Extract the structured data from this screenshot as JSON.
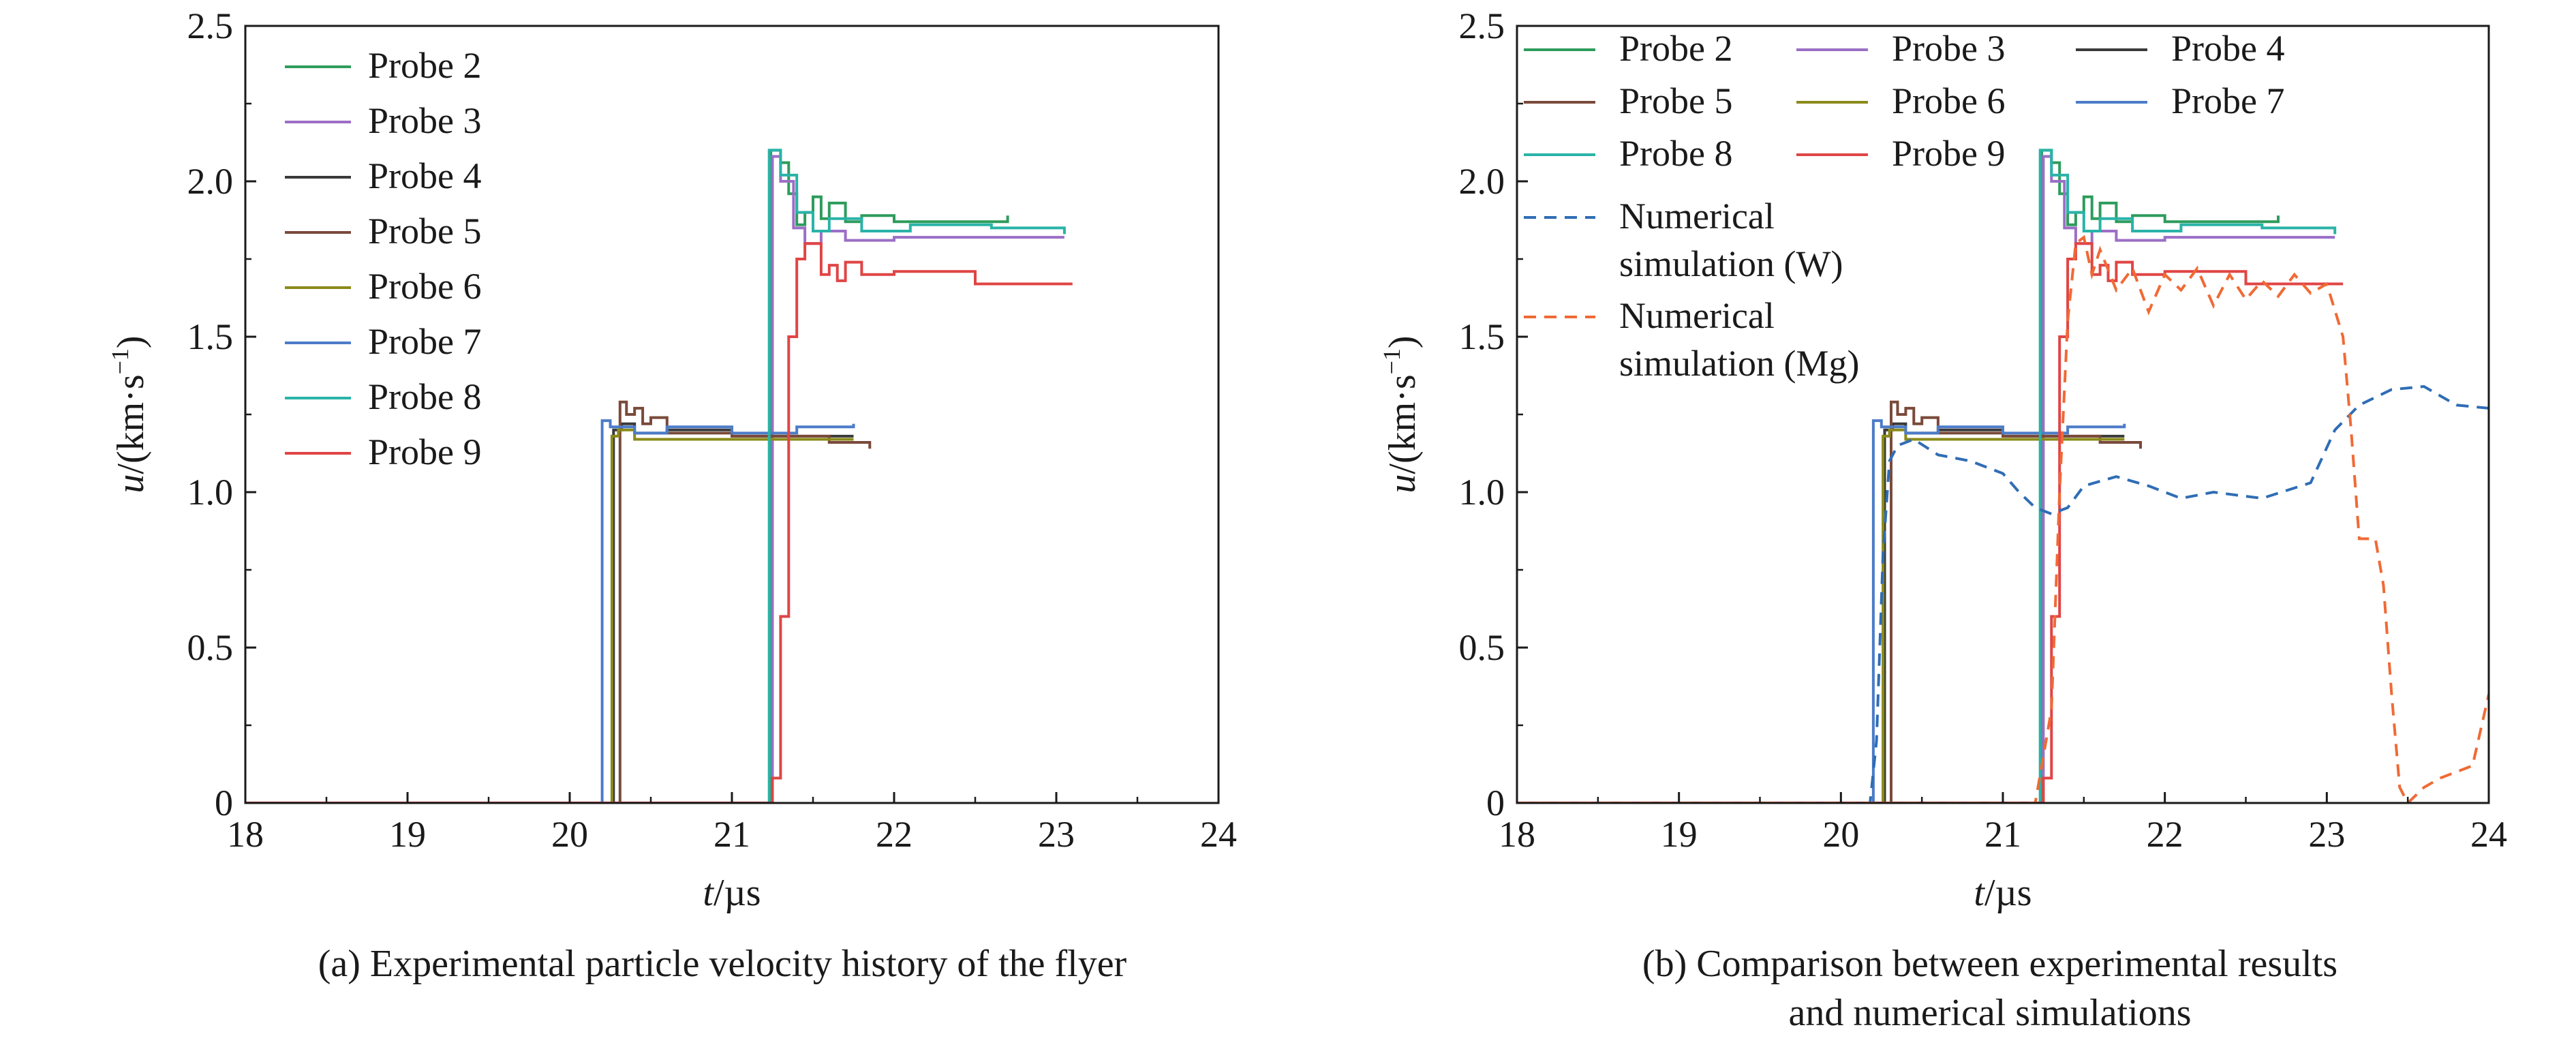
{
  "chart_data": [
    {
      "type": "line",
      "panel": "a",
      "caption": "(a) Experimental particle velocity history of the flyer",
      "xlabel_italic": "t",
      "xlabel_unit": "/µs",
      "ylabel_italic": "u",
      "ylabel_unit": "/(km·s",
      "ylabel_sup": "−1",
      "ylabel_close": ")",
      "xlim": [
        18,
        24
      ],
      "ylim": [
        0,
        2.5
      ],
      "xticks": [
        18,
        19,
        20,
        21,
        22,
        23,
        24
      ],
      "xtick_labels": [
        "18",
        "19",
        "20",
        "21",
        "22",
        "23",
        "24"
      ],
      "yticks": [
        0,
        0.5,
        1.0,
        1.5,
        2.0,
        2.5
      ],
      "ytick_labels": [
        "0",
        "0.5",
        "1.0",
        "1.5",
        "2.0",
        "2.5"
      ],
      "legend": {
        "position": "top-left",
        "columns": 1
      },
      "series": [
        {
          "name": "Probe 2",
          "color": "#2e9c5c",
          "style": "solid",
          "x": [
            18.0,
            21.22,
            21.24,
            21.3,
            21.35,
            21.4,
            21.45,
            21.5,
            21.55,
            21.6,
            21.7,
            21.8,
            22.0,
            22.7
          ],
          "y": [
            0.0,
            0.0,
            2.1,
            2.06,
            1.96,
            1.86,
            1.9,
            1.95,
            1.88,
            1.93,
            1.87,
            1.89,
            1.87,
            1.89
          ]
        },
        {
          "name": "Probe 3",
          "color": "#9b6fc6",
          "style": "solid",
          "x": [
            18.0,
            21.22,
            21.25,
            21.3,
            21.38,
            21.45,
            21.55,
            21.7,
            22.0,
            22.6,
            23.05
          ],
          "y": [
            0.0,
            0.0,
            2.08,
            2.0,
            1.85,
            1.8,
            1.84,
            1.81,
            1.82,
            1.82,
            1.82
          ]
        },
        {
          "name": "Probe 4",
          "color": "#3a3a3a",
          "style": "solid",
          "x": [
            18.0,
            20.24,
            20.27,
            20.32,
            20.4,
            20.6,
            21.0,
            21.75
          ],
          "y": [
            0.0,
            0.0,
            1.2,
            1.22,
            1.19,
            1.2,
            1.18,
            1.18
          ]
        },
        {
          "name": "Probe 5",
          "color": "#7a4a3a",
          "style": "solid",
          "x": [
            18.0,
            20.27,
            20.31,
            20.35,
            20.4,
            20.45,
            20.5,
            20.6,
            21.0,
            21.6,
            21.85
          ],
          "y": [
            0.0,
            0.0,
            1.29,
            1.25,
            1.27,
            1.22,
            1.24,
            1.19,
            1.18,
            1.16,
            1.14
          ]
        },
        {
          "name": "Probe 6",
          "color": "#8a8a1a",
          "style": "solid",
          "x": [
            18.0,
            20.23,
            20.26,
            20.3,
            20.4,
            21.0,
            21.75
          ],
          "y": [
            0.0,
            0.0,
            1.18,
            1.2,
            1.17,
            1.17,
            1.17
          ]
        },
        {
          "name": "Probe 7",
          "color": "#4c7cc8",
          "style": "solid",
          "x": [
            18.0,
            20.18,
            20.2,
            20.25,
            20.4,
            20.6,
            21.0,
            21.4,
            21.75
          ],
          "y": [
            0.0,
            0.0,
            1.23,
            1.21,
            1.19,
            1.21,
            1.19,
            1.21,
            1.22
          ]
        },
        {
          "name": "Probe 8",
          "color": "#2ab3a8",
          "style": "solid",
          "x": [
            18.0,
            21.21,
            21.23,
            21.3,
            21.4,
            21.5,
            21.6,
            21.8,
            22.1,
            22.6,
            23.05
          ],
          "y": [
            0.0,
            0.0,
            2.1,
            2.02,
            1.9,
            1.84,
            1.88,
            1.84,
            1.86,
            1.85,
            1.83
          ]
        },
        {
          "name": "Probe 9",
          "color": "#e04545",
          "style": "solid",
          "x": [
            18.0,
            21.08,
            21.2,
            21.25,
            21.3,
            21.35,
            21.4,
            21.45,
            21.55,
            21.6,
            21.65,
            21.7,
            21.8,
            22.0,
            22.5,
            23.1
          ],
          "y": [
            0.0,
            0.0,
            0.0,
            0.08,
            0.6,
            1.5,
            1.75,
            1.8,
            1.7,
            1.73,
            1.68,
            1.74,
            1.7,
            1.71,
            1.67,
            1.67
          ]
        }
      ]
    },
    {
      "type": "line",
      "panel": "b",
      "caption_lines": [
        "(b) Comparison between experimental results",
        "and numerical simulations"
      ],
      "xlabel_italic": "t",
      "xlabel_unit": "/µs",
      "ylabel_italic": "u",
      "ylabel_unit": "/(km·s",
      "ylabel_sup": "−1",
      "ylabel_close": ")",
      "xlim": [
        18,
        24
      ],
      "ylim": [
        0,
        2.5
      ],
      "xticks": [
        18,
        19,
        20,
        21,
        22,
        23,
        24
      ],
      "xtick_labels": [
        "18",
        "19",
        "20",
        "21",
        "22",
        "23",
        "24"
      ],
      "yticks": [
        0,
        0.5,
        1.0,
        1.5,
        2.0,
        2.5
      ],
      "ytick_labels": [
        "0",
        "0.5",
        "1.0",
        "1.5",
        "2.0",
        "2.5"
      ],
      "legend": {
        "position": "top",
        "columns": 3
      },
      "series": [
        {
          "name": "Probe 2",
          "color": "#2e9c5c",
          "style": "solid",
          "x": [
            18.0,
            21.22,
            21.24,
            21.3,
            21.35,
            21.4,
            21.45,
            21.5,
            21.55,
            21.6,
            21.7,
            21.8,
            22.0,
            22.7
          ],
          "y": [
            0.0,
            0.0,
            2.1,
            2.06,
            1.96,
            1.86,
            1.9,
            1.95,
            1.88,
            1.93,
            1.87,
            1.89,
            1.87,
            1.89
          ]
        },
        {
          "name": "Probe 3",
          "color": "#9b6fc6",
          "style": "solid",
          "x": [
            18.0,
            21.22,
            21.25,
            21.3,
            21.38,
            21.45,
            21.55,
            21.7,
            22.0,
            22.6,
            23.05
          ],
          "y": [
            0.0,
            0.0,
            2.08,
            2.0,
            1.85,
            1.8,
            1.84,
            1.81,
            1.82,
            1.82,
            1.82
          ]
        },
        {
          "name": "Probe 4",
          "color": "#3a3a3a",
          "style": "solid",
          "x": [
            18.0,
            20.24,
            20.27,
            20.32,
            20.4,
            20.6,
            21.0,
            21.75
          ],
          "y": [
            0.0,
            0.0,
            1.2,
            1.22,
            1.19,
            1.2,
            1.18,
            1.18
          ]
        },
        {
          "name": "Probe 5",
          "color": "#7a4a3a",
          "style": "solid",
          "x": [
            18.0,
            20.27,
            20.31,
            20.35,
            20.4,
            20.45,
            20.5,
            20.6,
            21.0,
            21.6,
            21.85
          ],
          "y": [
            0.0,
            0.0,
            1.29,
            1.25,
            1.27,
            1.22,
            1.24,
            1.19,
            1.18,
            1.16,
            1.14
          ]
        },
        {
          "name": "Probe 6",
          "color": "#8a8a1a",
          "style": "solid",
          "x": [
            18.0,
            20.23,
            20.26,
            20.3,
            20.4,
            21.0,
            21.75
          ],
          "y": [
            0.0,
            0.0,
            1.18,
            1.2,
            1.17,
            1.17,
            1.17
          ]
        },
        {
          "name": "Probe 7",
          "color": "#4c7cc8",
          "style": "solid",
          "x": [
            18.0,
            20.18,
            20.2,
            20.25,
            20.4,
            20.6,
            21.0,
            21.4,
            21.75
          ],
          "y": [
            0.0,
            0.0,
            1.23,
            1.21,
            1.19,
            1.21,
            1.19,
            1.21,
            1.22
          ]
        },
        {
          "name": "Probe 8",
          "color": "#2ab3a8",
          "style": "solid",
          "x": [
            18.0,
            21.21,
            21.23,
            21.3,
            21.4,
            21.5,
            21.6,
            21.8,
            22.1,
            22.6,
            23.05
          ],
          "y": [
            0.0,
            0.0,
            2.1,
            2.02,
            1.9,
            1.84,
            1.88,
            1.84,
            1.86,
            1.85,
            1.83
          ]
        },
        {
          "name": "Probe 9",
          "color": "#e04545",
          "style": "solid",
          "x": [
            18.0,
            21.08,
            21.2,
            21.25,
            21.3,
            21.35,
            21.4,
            21.45,
            21.55,
            21.6,
            21.65,
            21.7,
            21.8,
            22.0,
            22.5,
            23.1
          ],
          "y": [
            0.0,
            0.0,
            0.0,
            0.08,
            0.6,
            1.5,
            1.75,
            1.8,
            1.7,
            1.73,
            1.68,
            1.74,
            1.7,
            1.71,
            1.67,
            1.67
          ]
        },
        {
          "name": "Numerical simulation (W)",
          "legend_lines": [
            "Numerical",
            "simulation (W)"
          ],
          "color": "#2f6db5",
          "style": "dashed",
          "x": [
            18.0,
            20.18,
            20.22,
            20.26,
            20.3,
            20.35,
            20.45,
            20.6,
            20.8,
            21.0,
            21.1,
            21.2,
            21.3,
            21.4,
            21.5,
            21.7,
            21.9,
            22.1,
            22.3,
            22.6,
            22.9,
            23.05,
            23.2,
            23.4,
            23.6,
            23.8,
            24.0
          ],
          "y": [
            0.0,
            0.0,
            0.2,
            0.8,
            1.1,
            1.15,
            1.17,
            1.12,
            1.1,
            1.06,
            1.0,
            0.95,
            0.93,
            0.95,
            1.02,
            1.05,
            1.02,
            0.98,
            1.0,
            0.98,
            1.03,
            1.2,
            1.28,
            1.33,
            1.34,
            1.28,
            1.27
          ]
        },
        {
          "name": "Numerical simulation (Mg)",
          "legend_lines": [
            "Numerical",
            "simulation (Mg)"
          ],
          "color": "#f06a35",
          "style": "dashed",
          "x": [
            18.0,
            21.2,
            21.3,
            21.35,
            21.4,
            21.45,
            21.5,
            21.55,
            21.6,
            21.7,
            21.8,
            21.9,
            22.0,
            22.1,
            22.2,
            22.3,
            22.4,
            22.5,
            22.6,
            22.7,
            22.8,
            22.9,
            23.0,
            23.1,
            23.15,
            23.2,
            23.3,
            23.35,
            23.4,
            23.45,
            23.5,
            23.6,
            23.7,
            23.8,
            23.9,
            24.0
          ],
          "y": [
            0.0,
            0.0,
            0.3,
            1.0,
            1.55,
            1.8,
            1.82,
            1.7,
            1.78,
            1.65,
            1.72,
            1.58,
            1.7,
            1.65,
            1.72,
            1.6,
            1.7,
            1.62,
            1.68,
            1.63,
            1.7,
            1.64,
            1.67,
            1.5,
            1.2,
            0.85,
            0.85,
            0.7,
            0.35,
            0.05,
            0.0,
            0.05,
            0.08,
            0.1,
            0.12,
            0.35
          ]
        }
      ]
    }
  ]
}
